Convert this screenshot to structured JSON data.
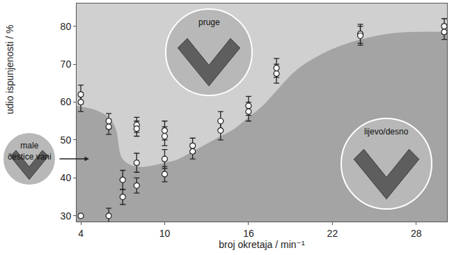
{
  "chart_data": {
    "type": "scatter",
    "x_label": "broj okretaja / min⁻¹",
    "y_label": "udio ispunjenosti / %",
    "xlim": [
      3.7,
      30.2
    ],
    "xticks": [
      4,
      10,
      16,
      22,
      28
    ],
    "ylim": [
      28.5,
      86
    ],
    "yticks": [
      30,
      40,
      50,
      60,
      70,
      80
    ],
    "grid": false,
    "marker": "circle",
    "color": "#ffffff",
    "x": [
      4,
      4,
      4,
      6,
      6,
      6,
      7,
      7,
      8,
      8,
      8,
      8,
      10,
      10,
      10,
      10,
      12,
      12,
      14,
      14,
      16,
      16,
      18,
      18,
      24,
      24,
      30,
      30
    ],
    "values": [
      62,
      60,
      30,
      55,
      53.5,
      30,
      35,
      39.5,
      54,
      53,
      44,
      38,
      52.5,
      51,
      45,
      41,
      48.5,
      47,
      55,
      52.5,
      59,
      57.5,
      69,
      67.5,
      78,
      77.5,
      80,
      78.5
    ],
    "errors": [
      2.5,
      2.5,
      null,
      2,
      2,
      2,
      2,
      2.5,
      2,
      2,
      2.5,
      2,
      2.5,
      2.5,
      2.5,
      2,
      2,
      2,
      2.5,
      2.5,
      2.5,
      2.5,
      2.5,
      2.5,
      2.5,
      2.5,
      2,
      2
    ],
    "regions": {
      "upper": {
        "label": "pruge",
        "color": "#d0d0d0"
      },
      "lower": {
        "label": "lijevo/desno",
        "color": "#a4a4a4"
      },
      "boundary_x": [
        3.7,
        5,
        6,
        6.5,
        7,
        8,
        10,
        11,
        12,
        13,
        14,
        15,
        16,
        17,
        18,
        19,
        20,
        22,
        24,
        26,
        28,
        30.2
      ],
      "boundary_y": [
        59,
        58,
        56,
        53,
        45,
        43,
        44,
        45,
        47,
        49,
        51,
        53,
        56,
        59,
        63,
        67,
        70,
        74,
        76.5,
        78,
        78.5,
        78.5
      ]
    },
    "side_note": {
      "lines": [
        "male",
        "čestice vani"
      ]
    }
  }
}
